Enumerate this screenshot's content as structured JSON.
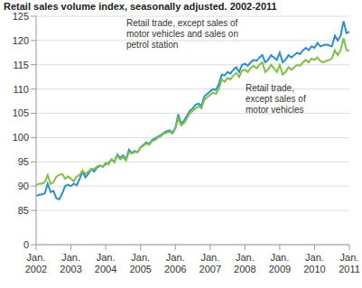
{
  "chart_data": {
    "type": "line",
    "title": "Retail sales volume index, seasonally adjusted. 2002-2011",
    "categories": [
      "Jan. 2002",
      null,
      null,
      null,
      null,
      null,
      null,
      null,
      null,
      null,
      null,
      null,
      "Jan. 2003",
      null,
      null,
      null,
      null,
      null,
      null,
      null,
      null,
      null,
      null,
      null,
      "Jan. 2004",
      null,
      null,
      null,
      null,
      null,
      null,
      null,
      null,
      null,
      null,
      null,
      "Jan. 2005",
      null,
      null,
      null,
      null,
      null,
      null,
      null,
      null,
      null,
      null,
      null,
      "Jan. 2006",
      null,
      null,
      null,
      null,
      null,
      null,
      null,
      null,
      null,
      null,
      null,
      "Jan. 2007",
      null,
      null,
      null,
      null,
      null,
      null,
      null,
      null,
      null,
      null,
      null,
      "Jan. 2008",
      null,
      null,
      null,
      null,
      null,
      null,
      null,
      null,
      null,
      null,
      null,
      "Jan. 2009",
      null,
      null,
      null,
      null,
      null,
      null,
      null,
      null,
      null,
      null,
      null,
      "Jan. 2010",
      null,
      null,
      null,
      null,
      null,
      null,
      null,
      null,
      null,
      null,
      null,
      "Jan. 2011"
    ],
    "series": [
      {
        "name": "Retail trade, except sales of motor vehicles and sales on petrol station",
        "color": "#2b8fd3",
        "values": [
          88.0,
          88.2,
          88.3,
          88.5,
          90.5,
          88.8,
          89.0,
          87.5,
          87.3,
          88.5,
          90.0,
          90.3,
          90.0,
          90.5,
          90.2,
          91.5,
          93.0,
          91.8,
          92.5,
          93.5,
          93.0,
          93.8,
          94.2,
          94.0,
          94.5,
          94.8,
          95.5,
          95.0,
          96.5,
          95.8,
          96.3,
          95.5,
          97.5,
          96.8,
          97.2,
          97.0,
          98.0,
          98.5,
          99.0,
          98.7,
          99.5,
          99.8,
          100.2,
          100.5,
          101.0,
          101.3,
          101.5,
          101.0,
          102.0,
          104.8,
          102.8,
          103.5,
          104.5,
          105.5,
          106.0,
          106.8,
          107.0,
          106.5,
          108.5,
          109.0,
          109.5,
          110.0,
          109.8,
          111.0,
          113.0,
          112.8,
          113.5,
          113.2,
          114.0,
          114.5,
          113.5,
          115.0,
          115.2,
          114.8,
          115.5,
          116.0,
          115.8,
          116.5,
          117.0,
          115.5,
          116.0,
          117.0,
          116.5,
          116.0,
          117.5,
          115.5,
          116.0,
          117.0,
          116.5,
          117.0,
          117.5,
          117.2,
          118.0,
          118.5,
          118.0,
          118.8,
          118.5,
          119.5,
          118.8,
          119.0,
          119.2,
          119.0,
          118.8,
          121.0,
          120.0,
          121.0,
          124.0,
          121.5,
          121.8
        ]
      },
      {
        "name": "Retail trade, except sales of motor vehicles",
        "color": "#7ec242",
        "values": [
          90.2,
          90.5,
          90.5,
          90.8,
          92.3,
          90.5,
          90.8,
          92.0,
          92.3,
          92.5,
          91.5,
          92.0,
          91.5,
          91.0,
          92.0,
          92.3,
          93.2,
          92.5,
          93.0,
          93.5,
          93.5,
          94.0,
          94.3,
          94.0,
          94.8,
          94.5,
          95.5,
          95.0,
          96.3,
          95.5,
          96.0,
          95.3,
          97.0,
          96.8,
          97.0,
          97.0,
          98.0,
          98.3,
          98.8,
          98.5,
          99.3,
          99.5,
          100.0,
          100.3,
          100.8,
          101.0,
          101.2,
          100.8,
          101.8,
          104.0,
          102.5,
          103.0,
          104.0,
          105.0,
          105.5,
          106.0,
          106.5,
          106.0,
          107.8,
          108.3,
          108.8,
          109.3,
          109.0,
          110.0,
          112.0,
          111.5,
          112.3,
          112.0,
          112.8,
          113.3,
          112.5,
          113.8,
          114.0,
          113.5,
          114.3,
          114.8,
          114.3,
          115.0,
          115.5,
          113.5,
          114.0,
          115.0,
          114.3,
          113.5,
          115.0,
          113.0,
          113.5,
          114.5,
          114.0,
          114.5,
          115.0,
          114.8,
          115.5,
          116.0,
          115.5,
          116.3,
          116.0,
          116.5,
          115.8,
          115.5,
          115.8,
          116.0,
          116.3,
          118.0,
          117.0,
          118.0,
          120.5,
          118.0,
          118.0
        ]
      }
    ],
    "ylim": [
      0,
      125
    ],
    "yticks": [
      0,
      85,
      90,
      95,
      100,
      105,
      110,
      115,
      120,
      125
    ],
    "grid": true
  }
}
